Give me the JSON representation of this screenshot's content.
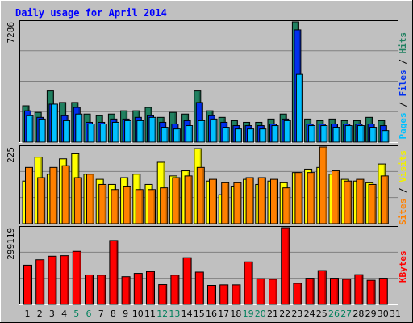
{
  "chart_data": [
    {
      "type": "bar",
      "title": "Daily usage for April 2014",
      "ymax_label": "7286",
      "side_label": [
        {
          "text": "Pages",
          "color": "#00c0ff"
        },
        {
          "text": " / ",
          "color": "#000000"
        },
        {
          "text": "Files",
          "color": "#0030f0"
        },
        {
          "text": " / ",
          "color": "#000000"
        },
        {
          "text": "Hits",
          "color": "#208060"
        }
      ],
      "ylim": [
        0,
        7286
      ],
      "series": [
        {
          "name": "Hits",
          "color": "#208060",
          "values": [
            2200,
            1800,
            3100,
            2400,
            2400,
            1700,
            1600,
            1700,
            1900,
            1900,
            2100,
            1500,
            1800,
            1700,
            3100,
            1900,
            1500,
            1300,
            1200,
            1200,
            1400,
            1700,
            7286,
            1400,
            1300,
            1400,
            1300,
            1300,
            1500,
            1300,
            0
          ]
        },
        {
          "name": "Files",
          "color": "#0030f0",
          "values": [
            1900,
            1500,
            2300,
            1600,
            2100,
            1200,
            1200,
            1400,
            1400,
            1500,
            1600,
            1200,
            1100,
            1300,
            2400,
            1600,
            1200,
            1000,
            1000,
            1000,
            1100,
            1400,
            6800,
            1100,
            1100,
            1100,
            1100,
            1100,
            1100,
            1000,
            0
          ]
        },
        {
          "name": "Pages",
          "color": "#00c0ff",
          "values": [
            1600,
            1400,
            2300,
            1300,
            1700,
            1100,
            1100,
            1200,
            1300,
            1300,
            1500,
            900,
            800,
            1000,
            1300,
            1400,
            900,
            800,
            800,
            800,
            1000,
            1300,
            4100,
            1000,
            1000,
            900,
            1000,
            1000,
            900,
            700,
            0
          ]
        }
      ]
    },
    {
      "type": "bar",
      "ymax_label": "225",
      "side_label": [
        {
          "text": "Sites",
          "color": "#ff8000"
        },
        {
          "text": " / ",
          "color": "#000000"
        },
        {
          "text": "Visits",
          "color": "#f0f000"
        }
      ],
      "ylim": [
        0,
        225
      ],
      "series": [
        {
          "name": "Visits",
          "color": "#ffff00",
          "values": [
            125,
            195,
            145,
            190,
            205,
            145,
            130,
            115,
            135,
            145,
            115,
            180,
            140,
            155,
            220,
            125,
            85,
            110,
            130,
            115,
            125,
            120,
            150,
            160,
            165,
            145,
            130,
            125,
            120,
            175,
            0
          ]
        },
        {
          "name": "Sites",
          "color": "#ff8000",
          "values": [
            165,
            135,
            165,
            170,
            135,
            145,
            115,
            100,
            110,
            100,
            100,
            105,
            135,
            140,
            165,
            130,
            120,
            120,
            135,
            135,
            130,
            105,
            150,
            150,
            225,
            155,
            125,
            130,
            115,
            140,
            0
          ]
        }
      ]
    },
    {
      "type": "bar",
      "ymax_label": "299119",
      "side_label": [
        {
          "text": "KBytes",
          "color": "#ff0000"
        }
      ],
      "ylim": [
        0,
        299119
      ],
      "series": [
        {
          "name": "KBytes",
          "color": "#ff0000",
          "values": [
            153000,
            174000,
            188000,
            190000,
            207000,
            115000,
            114000,
            249000,
            108000,
            121000,
            128000,
            77000,
            114000,
            182000,
            126000,
            74000,
            76000,
            76000,
            166000,
            100000,
            98000,
            299119,
            82000,
            102000,
            132000,
            102000,
            98000,
            116000,
            94000,
            102000,
            0
          ]
        }
      ]
    }
  ],
  "x_axis": {
    "labels": [
      "1",
      "2",
      "3",
      "4",
      "5",
      "6",
      "7",
      "8",
      "9",
      "10",
      "11",
      "12",
      "13",
      "14",
      "15",
      "16",
      "17",
      "18",
      "19",
      "20",
      "21",
      "22",
      "23",
      "24",
      "25",
      "26",
      "27",
      "28",
      "29",
      "30",
      "31"
    ],
    "weekend_days": [
      5,
      6,
      12,
      13,
      19,
      20,
      26,
      27
    ],
    "weekday_color": "#000000",
    "weekend_color": "#00805c"
  },
  "colors": {
    "background": "#c0c0c0",
    "plot_background": "#c0c0c0",
    "title": "#0000ff",
    "gridline": "#808080"
  }
}
